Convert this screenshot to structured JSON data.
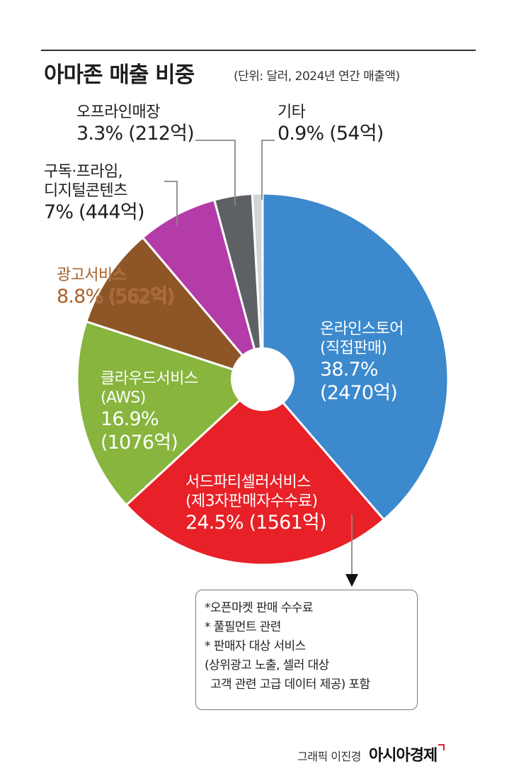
{
  "header": {
    "title": "아마존 매출 비중",
    "subtitle": "(단위: 달러, 2024년 연간 매출액)"
  },
  "chart_data": {
    "type": "pie",
    "title": "아마존 매출 비중",
    "subtitle": "(단위: 달러, 2024년 연간 매출액)",
    "donut": true,
    "slices": [
      {
        "name": "온라인스토어",
        "sub": "(직접판매)",
        "percent": 38.7,
        "percent_label": "38.7%",
        "amount_label": "(2470억)",
        "color": "#3c89cd"
      },
      {
        "name": "서드파티셀러서비스",
        "sub": "(제3자판매자수수료)",
        "percent": 24.5,
        "percent_label": "24.5%",
        "amount_label": "(1561억)",
        "color": "#e72127"
      },
      {
        "name": "클라우드서비스",
        "sub": "(AWS)",
        "percent": 16.9,
        "percent_label": "16.9%",
        "amount_label": "(1076억)",
        "color": "#87b53d"
      },
      {
        "name": "광고서비스",
        "sub": "",
        "percent": 8.8,
        "percent_label": "8.8%",
        "amount_label": "(562억)",
        "color": "#8e5627"
      },
      {
        "name": "구독·프라임,",
        "sub": "디지털콘텐츠",
        "percent": 7.0,
        "percent_label": "7%",
        "amount_label": "(444억)",
        "color": "#b43ca8"
      },
      {
        "name": "오프라인매장",
        "sub": "",
        "percent": 3.3,
        "percent_label": "3.3%",
        "amount_label": "(212억)",
        "color": "#5d6065"
      },
      {
        "name": "기타",
        "sub": "",
        "percent": 0.9,
        "percent_label": "0.9%",
        "amount_label": "(54억)",
        "color": "#d2d4d7"
      }
    ]
  },
  "note": {
    "lines": [
      "*오픈마켓 판매 수수료",
      "* 풀필먼트 관련",
      "* 판매자 대상 서비스",
      "(상위광고 노출, 셀러 대상",
      " 고객 관련 고급 데이터 제공) 포함"
    ]
  },
  "credit": {
    "author": "그래픽 이진경",
    "brand": "아시아경제"
  }
}
